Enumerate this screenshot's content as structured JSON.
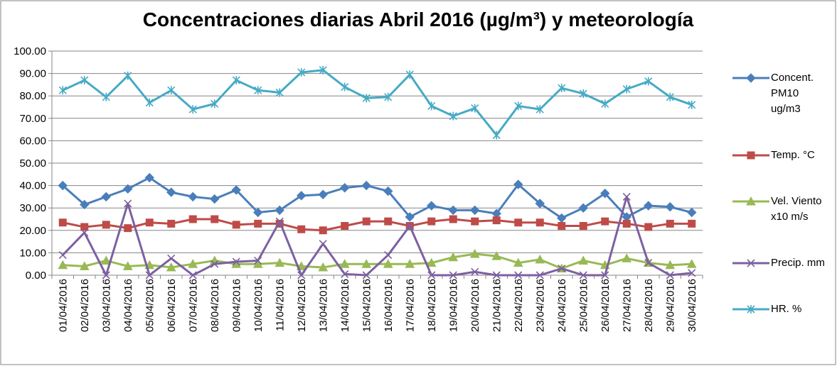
{
  "chart_data": {
    "type": "line",
    "title": "Concentraciones diarias Abril 2016 (µg/m³) y  meteorología",
    "categories": [
      "01/04/2016",
      "02/04/2016",
      "03/04/2016",
      "04/04/2016",
      "05/04/2016",
      "06/04/2016",
      "07/04/2016",
      "08/04/2016",
      "09/04/2016",
      "10/04/2016",
      "11/04/2016",
      "12/04/2016",
      "13/04/2016",
      "14/04/2016",
      "15/04/2016",
      "16/04/2016",
      "17/04/2016",
      "18/04/2016",
      "19/04/2016",
      "20/04/2016",
      "21/04/2016",
      "22/04/2016",
      "23/04/2016",
      "24/04/2016",
      "25/04/2016",
      "26/04/2016",
      "27/04/2016",
      "28/04/2016",
      "29/04/2016",
      "30/04/2016"
    ],
    "series": [
      {
        "name": "Concent. PM10 ug/m3",
        "color": "#4a7ebb",
        "marker": "diamond",
        "values": [
          40,
          31.5,
          35,
          38.5,
          43.5,
          37,
          35,
          34,
          38,
          28,
          29,
          35.5,
          36,
          39,
          40,
          37.5,
          26,
          31,
          29,
          29,
          27.5,
          40.5,
          32,
          25.5,
          30,
          36.5,
          26,
          31,
          30.5,
          28
        ]
      },
      {
        "name": "Temp. °C",
        "color": "#be4b48",
        "marker": "square",
        "values": [
          23.5,
          21.5,
          22.5,
          21,
          23.5,
          23,
          25,
          25,
          22.5,
          23,
          23,
          20.5,
          20,
          22,
          24,
          24,
          22,
          24,
          25,
          24,
          24.5,
          23.5,
          23.5,
          22,
          22,
          24,
          23,
          21.5,
          23,
          23
        ]
      },
      {
        "name": "Vel. Viento x10 m/s",
        "color": "#98b954",
        "marker": "triangle",
        "values": [
          4.5,
          4,
          6.5,
          4,
          4.5,
          3.5,
          5,
          6.5,
          5,
          5,
          5.5,
          4,
          3.5,
          5,
          5,
          5,
          5,
          5.5,
          8,
          9.5,
          8.5,
          5.5,
          7,
          3,
          6.5,
          4.5,
          7.5,
          5.5,
          4.5,
          5
        ]
      },
      {
        "name": "Precip. mm",
        "color": "#7d60a0",
        "marker": "x",
        "values": [
          9,
          19,
          0,
          32,
          0,
          7.5,
          0,
          5,
          6,
          6.5,
          24,
          0,
          14,
          0.5,
          0,
          9,
          22,
          0,
          0,
          1.5,
          0,
          0,
          0,
          3,
          0,
          0,
          35,
          5.5,
          0,
          1
        ]
      },
      {
        "name": "HR. %",
        "color": "#46aac5",
        "marker": "star",
        "values": [
          82.5,
          87,
          79.5,
          89,
          77,
          82.5,
          74,
          76.5,
          87,
          82.5,
          81.5,
          90.5,
          91.5,
          84,
          79,
          79.5,
          89.5,
          75.5,
          71,
          74.5,
          62.5,
          75.5,
          74,
          83.5,
          81,
          76.5,
          83,
          86.5,
          79.5,
          76
        ]
      }
    ],
    "ylim": [
      0,
      100
    ],
    "yticks": [
      {
        "value": 0,
        "label": "0.00"
      },
      {
        "value": 10,
        "label": "10.00"
      },
      {
        "value": 20,
        "label": "20.00"
      },
      {
        "value": 30,
        "label": "30.00"
      },
      {
        "value": 40,
        "label": "40.00"
      },
      {
        "value": 50,
        "label": "50.00"
      },
      {
        "value": 60,
        "label": "60.00"
      },
      {
        "value": 70,
        "label": "70.00"
      },
      {
        "value": 80,
        "label": "80.00"
      },
      {
        "value": 90,
        "label": "90.00"
      },
      {
        "value": 100,
        "label": "100.00"
      }
    ],
    "grid": true,
    "legend": "right"
  }
}
